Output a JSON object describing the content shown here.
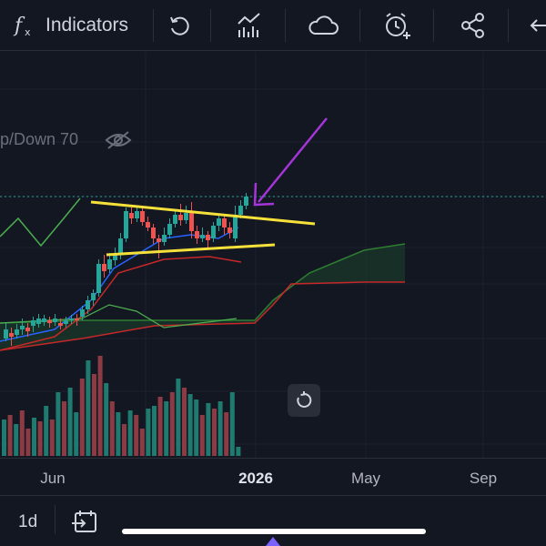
{
  "toolbar": {
    "indicators_label": "Indicators",
    "icons": [
      "fx-icon",
      "replay-icon",
      "compare-icon",
      "cloud-icon",
      "alert-clock-icon",
      "share-icon",
      "back-arrow-icon"
    ]
  },
  "legend": {
    "text": "p/Down 70",
    "icon": "eye-off-icon"
  },
  "chart_data": {
    "type": "candlestick",
    "x_ticks": [
      "Jun",
      "2026",
      "May",
      "Sep"
    ],
    "annotations": [
      "trendline-upper",
      "trendline-lower",
      "arrow"
    ],
    "colors": {
      "up": "#26a69a",
      "down": "#ef5350",
      "trendline": "#f5e13a",
      "arrow": "#a535d8",
      "volume_up": "#1f7a70",
      "volume_down": "#8c3a44",
      "cloud_fill": "#1b3a2a"
    }
  },
  "axis": {
    "ticks": [
      {
        "label": "Jun"
      },
      {
        "label": "2026"
      },
      {
        "label": "May"
      },
      {
        "label": "Sep"
      }
    ]
  },
  "bottom": {
    "interval": "1d",
    "goto_icon": "goto-date-icon"
  }
}
